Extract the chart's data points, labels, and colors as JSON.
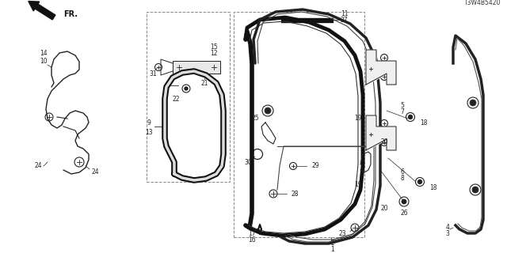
{
  "bg_color": "#ffffff",
  "diagram_code": "T3W4B5420",
  "color_dark": "#222222",
  "color_med": "#555555",
  "figsize": [
    6.4,
    3.2
  ],
  "dpi": 100
}
